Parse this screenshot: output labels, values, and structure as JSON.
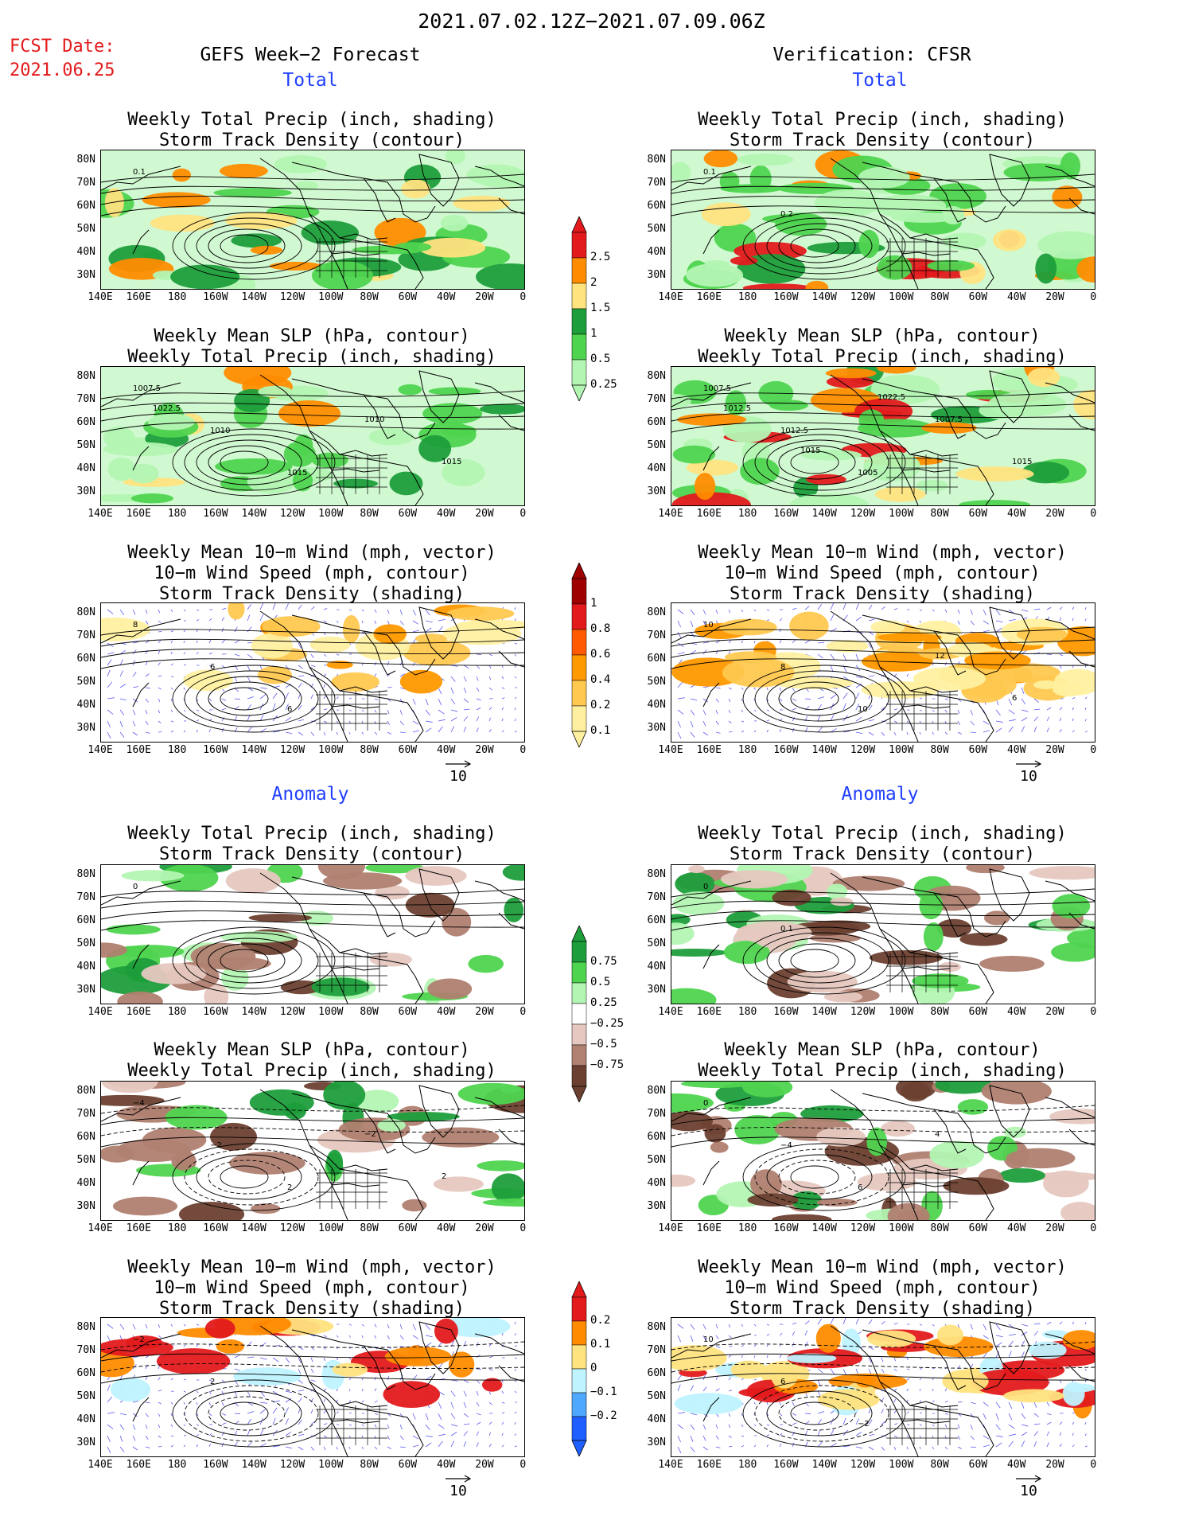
{
  "title": "2021.07.02.12Z−2021.07.09.06Z",
  "fcst_label": "FCST Date:",
  "fcst_date": "2021.06.25",
  "left_header": "GEFS Week−2 Forecast",
  "right_header": "Verification: CFSR",
  "section_total": "Total",
  "section_anomaly": "Anomaly",
  "panel_titles": {
    "precip_track": [
      "Weekly Total Precip (inch, shading)",
      "Storm Track Density (contour)"
    ],
    "slp_precip": [
      "Weekly Mean SLP (hPa, contour)",
      "Weekly Total Precip (inch, shading)"
    ],
    "wind_track": [
      "Weekly Mean 10−m Wind (mph, vector)",
      "10−m Wind Speed (mph, contour)",
      "Storm Track Density (shading)"
    ]
  },
  "lat_labels": [
    "80N",
    "70N",
    "60N",
    "50N",
    "40N",
    "30N"
  ],
  "lon_labels": [
    "140E",
    "160E",
    "180",
    "160W",
    "140W",
    "120W",
    "100W",
    "80W",
    "60W",
    "40W",
    "20W",
    "0"
  ],
  "vector_ref": "10",
  "colorbars": {
    "total_precip": {
      "labels": [
        "2.5",
        "2",
        "1.5",
        "1",
        "0.5",
        "0.25"
      ],
      "colors": [
        "#e31a1c",
        "#ff8c00",
        "#ffe37f",
        "#1e9e3b",
        "#4fd44f",
        "#b3f5b3"
      ]
    },
    "total_track": {
      "labels": [
        "1",
        "0.8",
        "0.6",
        "0.4",
        "0.2",
        "0.1"
      ],
      "colors": [
        "#9e0000",
        "#e31a1c",
        "#ff5a00",
        "#ff9900",
        "#ffc850",
        "#fff0a0"
      ]
    },
    "anom_precip": {
      "labels": [
        "0.75",
        "0.5",
        "0.25",
        "−0.25",
        "−0.5",
        "−0.75"
      ],
      "colors": [
        "#1e9e3b",
        "#4fd44f",
        "#b3f5b3",
        "#ffffff",
        "#e6c8c0",
        "#b08070",
        "#6b4030"
      ]
    },
    "anom_track": {
      "labels": [
        "0.2",
        "0.1",
        "0",
        "−0.1",
        "−0.2"
      ],
      "colors": [
        "#e31a1c",
        "#ff8c00",
        "#ffe37f",
        "#bff3ff",
        "#4fa8ff",
        "#1f5fff"
      ]
    }
  },
  "contour_labels": {
    "fc_slp": [
      "1007.5",
      "1010",
      "1015",
      "1010",
      "1015",
      "1022.5"
    ],
    "ob_slp": [
      "1007.5",
      "1012.5",
      "1005",
      "1007.5",
      "1015",
      "1012.5",
      "1015",
      "1022.5"
    ],
    "ob_track": [
      "0.1",
      "0.2"
    ],
    "fc_track": [
      "0.1"
    ],
    "fc_wind": [
      "8",
      "6",
      "6"
    ],
    "ob_wind": [
      "10",
      "8",
      "10",
      "12",
      "6"
    ],
    "fa_track": [
      "0"
    ],
    "oa_track": [
      "0",
      "0.1"
    ],
    "fa_slp": [
      "−4",
      "−2",
      "2",
      "−2",
      "2"
    ],
    "oa_slp": [
      "0",
      "−4",
      "6",
      "4"
    ],
    "fa_wind": [
      "−2",
      "2"
    ],
    "oa_wind": [
      "10",
      "6",
      "−2"
    ]
  }
}
